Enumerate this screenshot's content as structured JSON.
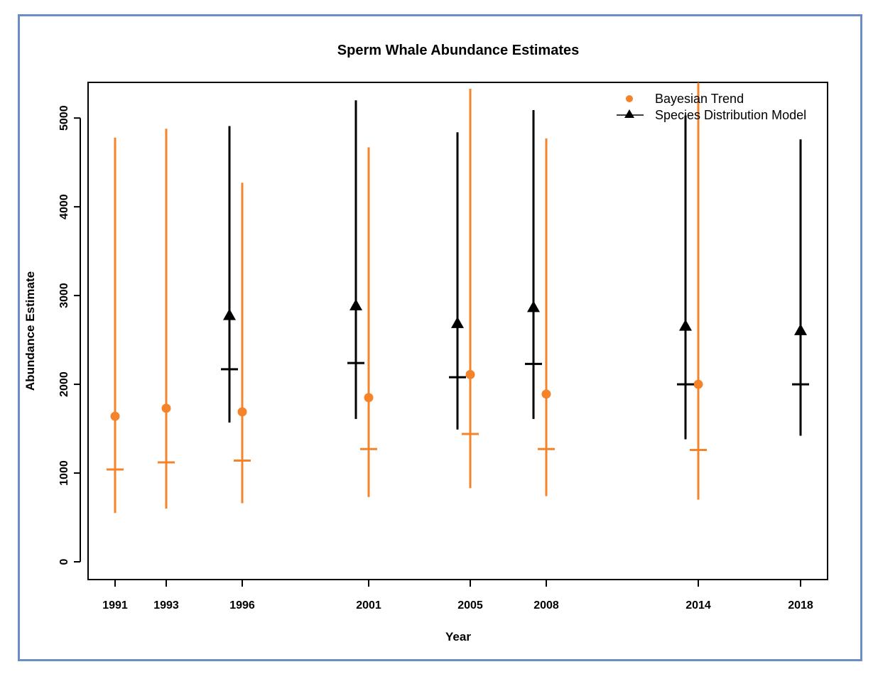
{
  "colors": {
    "bayesian": "#f5832a",
    "sdm": "#000000",
    "frame": "#6b8cc4"
  },
  "chart_data": {
    "type": "scatter",
    "title": "Sperm Whale Abundance Estimates",
    "xlabel": "Year",
    "ylabel": "Abundance Estimate",
    "ylim": [
      -200,
      5400
    ],
    "y_ticks": [
      0,
      1000,
      2000,
      3000,
      4000,
      5000
    ],
    "x_ticks": [
      "1991",
      "1993",
      "1996",
      "2001",
      "2005",
      "2008",
      "2014",
      "2018"
    ],
    "legend_position": "top-right",
    "series": [
      {
        "name": "Bayesian Trend",
        "marker": "circle",
        "points": [
          {
            "year": "1991",
            "estimate": 1640,
            "median": 1040,
            "lower": 550,
            "upper": 4780
          },
          {
            "year": "1993",
            "estimate": 1730,
            "median": 1120,
            "lower": 600,
            "upper": 4880
          },
          {
            "year": "1996",
            "estimate": 1690,
            "median": 1140,
            "lower": 660,
            "upper": 4270
          },
          {
            "year": "2001",
            "estimate": 1850,
            "median": 1270,
            "lower": 730,
            "upper": 4670
          },
          {
            "year": "2005",
            "estimate": 2110,
            "median": 1440,
            "lower": 830,
            "upper": 5330
          },
          {
            "year": "2008",
            "estimate": 1890,
            "median": 1270,
            "lower": 740,
            "upper": 4770
          },
          {
            "year": "2014",
            "estimate": 2000,
            "median": 1260,
            "lower": 700,
            "upper": 5400
          }
        ]
      },
      {
        "name": "Species Distribution Model",
        "marker": "triangle",
        "points": [
          {
            "year": "1996",
            "estimate": 2780,
            "median": 2170,
            "lower": 1570,
            "upper": 4910
          },
          {
            "year": "2001",
            "estimate": 2890,
            "median": 2240,
            "lower": 1610,
            "upper": 5200
          },
          {
            "year": "2005",
            "estimate": 2690,
            "median": 2080,
            "lower": 1490,
            "upper": 4840
          },
          {
            "year": "2008",
            "estimate": 2870,
            "median": 2230,
            "lower": 1610,
            "upper": 5090
          },
          {
            "year": "2014",
            "estimate": 2660,
            "median": 2000,
            "lower": 1380,
            "upper": 5030
          },
          {
            "year": "2018",
            "estimate": 2610,
            "median": 2000,
            "lower": 1420,
            "upper": 4760
          }
        ]
      }
    ]
  }
}
